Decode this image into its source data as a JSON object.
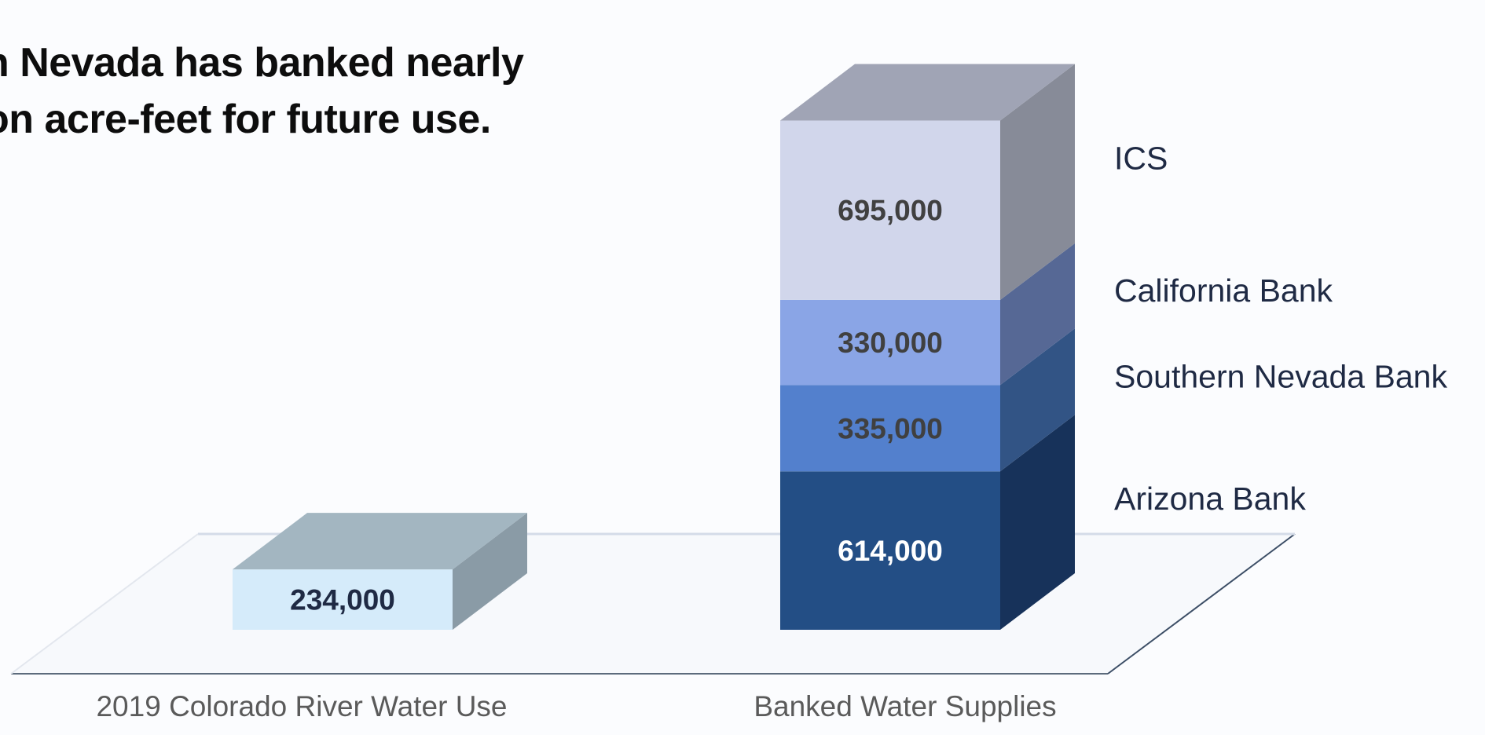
{
  "title": {
    "line1": "n Nevada has banked nearly",
    "line2": "on acre-feet for future use."
  },
  "chart_data": {
    "type": "bar",
    "stacked": true,
    "three_d": true,
    "categories": [
      "2019 Colorado River Water Use",
      "Banked Water Supplies"
    ],
    "series": [
      {
        "name": "",
        "category": 0,
        "value": 234000,
        "label": "234,000",
        "color": "#d5ebfa",
        "side": "#8a9ba6",
        "top": "#a3b6c1",
        "text_color": "#1f2a44"
      },
      {
        "name": "Arizona Bank",
        "category": 1,
        "value": 614000,
        "label": "614,000",
        "color": "#234e85",
        "side": "#17325a",
        "top": "#1d406d",
        "text_color": "#ffffff"
      },
      {
        "name": "Southern Nevada Bank",
        "category": 1,
        "value": 335000,
        "label": "335,000",
        "color": "#5380cd",
        "side": "#325485",
        "top": "#466fb4",
        "text_color": "#404040"
      },
      {
        "name": "California Bank",
        "category": 1,
        "value": 330000,
        "label": "330,000",
        "color": "#8aa5e6",
        "side": "#566895",
        "top": "#7d97d6",
        "text_color": "#404040"
      },
      {
        "name": "ICS",
        "category": 1,
        "value": 695000,
        "label": "695,000",
        "color": "#d1d6eb",
        "side": "#878b98",
        "top": "#a0a4b5",
        "text_color": "#404040"
      }
    ],
    "legend_position": "right",
    "grid": false
  }
}
